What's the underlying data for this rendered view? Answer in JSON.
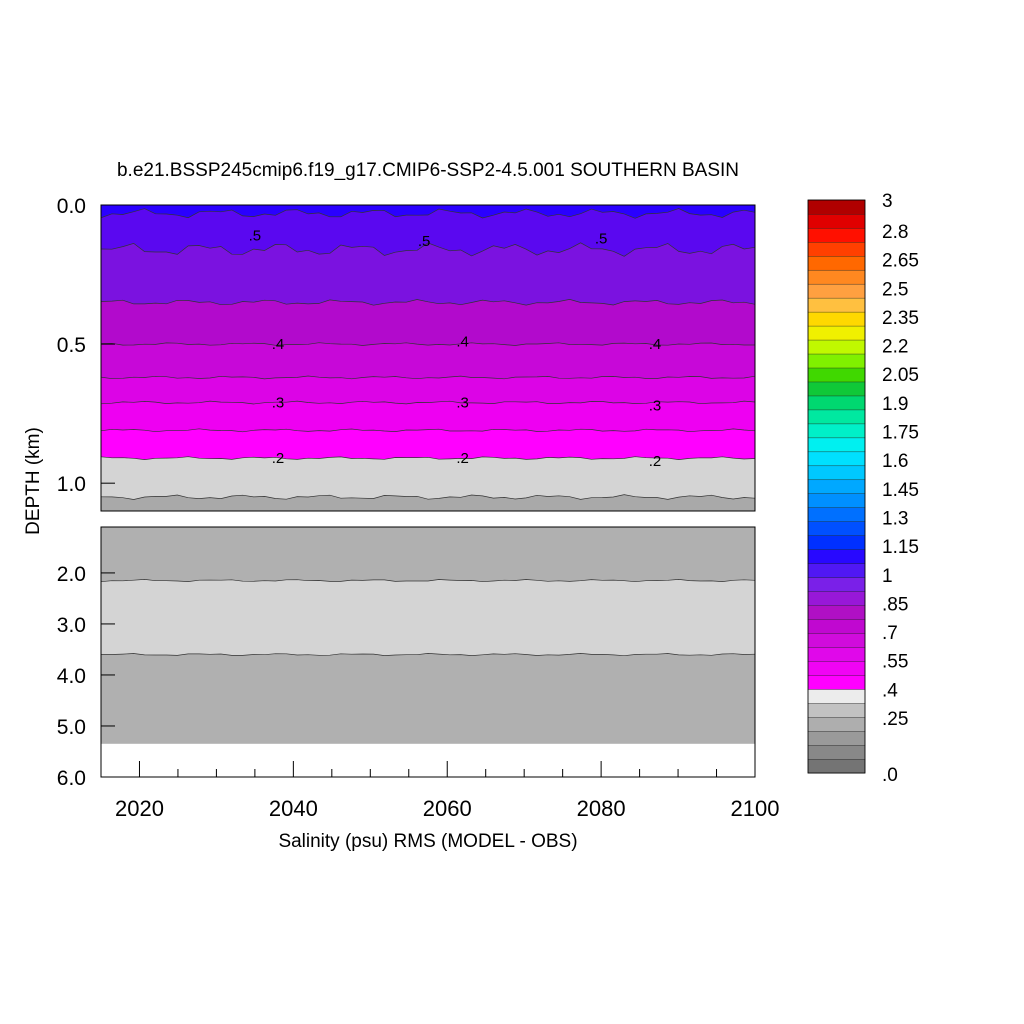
{
  "chart_data": {
    "type": "heatmap",
    "title": "b.e21.BSSP245cmip6.f19_g17.CMIP6-SSP2-4.5.001 SOUTHERN BASIN",
    "xlabel": "Salinity (psu) RMS (MODEL - OBS)",
    "ylabel": "DEPTH (km)",
    "xlim": [
      2015,
      2100
    ],
    "x_ticks": [
      "2020",
      "2040",
      "2060",
      "2080",
      "2100"
    ],
    "upper_panel": {
      "ylim": [
        0.0,
        1.1
      ],
      "y_ticks": [
        "0.0",
        "0.5",
        "1.0"
      ],
      "bands": [
        {
          "top_depth": 0.0,
          "value": 0.575,
          "color": "#2a00ff"
        },
        {
          "top_depth": 0.03,
          "value": 0.55,
          "color": "#5a08f0"
        },
        {
          "top_depth": 0.16,
          "value": 0.5,
          "color": "#7b12e0"
        },
        {
          "top_depth": 0.35,
          "value": 0.45,
          "color": "#b20acc"
        },
        {
          "top_depth": 0.5,
          "value": 0.4,
          "color": "#c708d8"
        },
        {
          "top_depth": 0.62,
          "value": 0.35,
          "color": "#dc04e6"
        },
        {
          "top_depth": 0.71,
          "value": 0.3,
          "color": "#ee00f2"
        },
        {
          "top_depth": 0.81,
          "value": 0.25,
          "color": "#ff00ff"
        },
        {
          "top_depth": 0.91,
          "value": 0.2,
          "color": "#d4d4d4"
        },
        {
          "top_depth": 1.05,
          "value": 0.15,
          "color": "#a9a9a9"
        }
      ],
      "contour_labels": [
        {
          "text": ".5",
          "x": 2035,
          "depth": 0.11
        },
        {
          "text": ".5",
          "x": 2057,
          "depth": 0.13
        },
        {
          "text": ".5",
          "x": 2080,
          "depth": 0.12
        },
        {
          "text": ".4",
          "x": 2038,
          "depth": 0.5
        },
        {
          "text": ".4",
          "x": 2062,
          "depth": 0.49
        },
        {
          "text": ".4",
          "x": 2087,
          "depth": 0.5
        },
        {
          "text": ".3",
          "x": 2038,
          "depth": 0.71
        },
        {
          "text": ".3",
          "x": 2062,
          "depth": 0.71
        },
        {
          "text": ".3",
          "x": 2087,
          "depth": 0.72
        },
        {
          "text": ".2",
          "x": 2038,
          "depth": 0.91
        },
        {
          "text": ".2",
          "x": 2062,
          "depth": 0.91
        },
        {
          "text": ".2",
          "x": 2087,
          "depth": 0.92
        }
      ]
    },
    "lower_panel": {
      "ylim": [
        1.1,
        6.0
      ],
      "y_ticks": [
        "2.0",
        "3.0",
        "4.0",
        "5.0",
        "6.0"
      ],
      "bands": [
        {
          "top_depth": 1.1,
          "value": 0.15,
          "color": "#b0b0b0"
        },
        {
          "top_depth": 2.15,
          "value": 0.2,
          "color": "#d4d4d4"
        },
        {
          "top_depth": 3.6,
          "value": 0.15,
          "color": "#b0b0b0"
        }
      ],
      "bottom_depth": 5.35
    },
    "colorbar": {
      "tick_labels": [
        "3",
        "2.8",
        "2.65",
        "2.5",
        "2.35",
        "2.2",
        "2.05",
        "1.9",
        "1.75",
        "1.6",
        "1.45",
        "1.3",
        "1.15",
        "1",
        ".85",
        ".7",
        ".55",
        ".4",
        ".25",
        ".0"
      ],
      "levels": 40,
      "colors": [
        "#747474",
        "#888888",
        "#9a9a9a",
        "#aeaeae",
        "#c2c2c2",
        "#ececec",
        "#ff00ff",
        "#f004f4",
        "#e008ea",
        "#d00cdc",
        "#c008d0",
        "#b010c4",
        "#9818d8",
        "#7a20e8",
        "#5018f4",
        "#2808ff",
        "#0030ff",
        "#0050ff",
        "#0070ff",
        "#0090ff",
        "#00a8ff",
        "#00c8ff",
        "#00e0ff",
        "#00f0f0",
        "#00f0c8",
        "#00e8a0",
        "#00d870",
        "#10c838",
        "#40d800",
        "#80f000",
        "#c0f800",
        "#f0f000",
        "#ffd800",
        "#ffc040",
        "#ffa040",
        "#ff8820",
        "#ff6800",
        "#ff4000",
        "#ff1000",
        "#e00000",
        "#b00000"
      ]
    }
  }
}
